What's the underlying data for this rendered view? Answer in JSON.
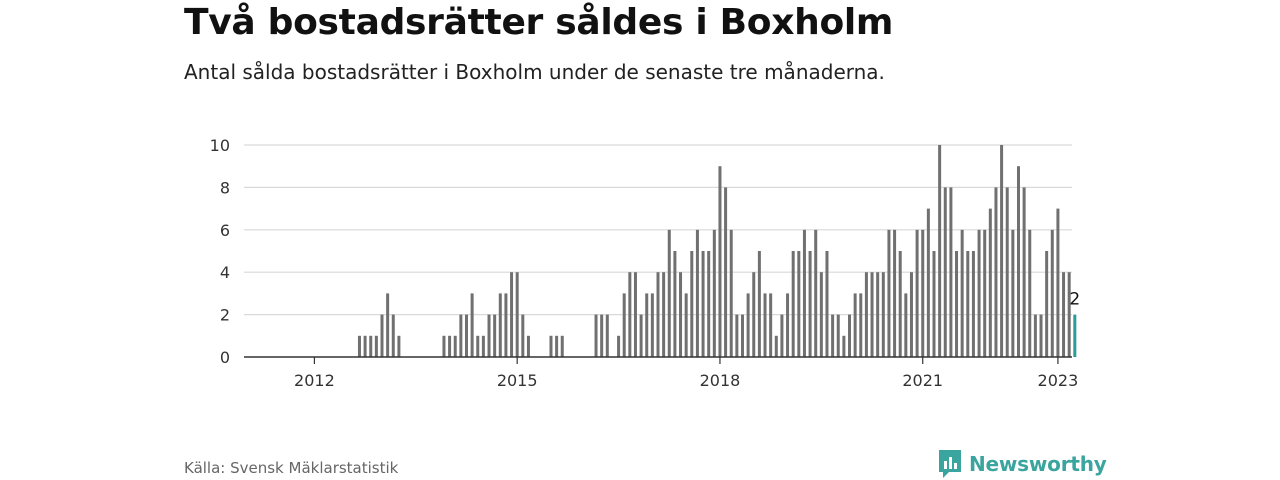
{
  "header": {
    "title": "Två bostadsrätter såldes i Boxholm",
    "subtitle": "Antal sålda bostadsrätter i Boxholm under de senaste tre månaderna."
  },
  "footer": {
    "source": "Källa: Svensk Mäklarstatistik",
    "brand": "Newsworthy"
  },
  "colors": {
    "bar": "#707070",
    "highlight": "#2a9d98",
    "grid": "#d9d9d9",
    "axis": "#333333",
    "brand": "#3aa59f"
  },
  "icons": {
    "brand": "newsworthy-logo-icon"
  },
  "chart_data": {
    "type": "bar",
    "x_start": "2011-01",
    "x_end": "2023-03",
    "ylim": [
      0,
      10
    ],
    "yticks": [
      0,
      2,
      4,
      6,
      8,
      10
    ],
    "xticks": [
      {
        "label": "2012",
        "month": "2012-01"
      },
      {
        "label": "2015",
        "month": "2015-01"
      },
      {
        "label": "2018",
        "month": "2018-01"
      },
      {
        "label": "2021",
        "month": "2021-01"
      },
      {
        "label": "2023",
        "month": "2023-01"
      }
    ],
    "grid": true,
    "legend": "none",
    "highlight_label": "2",
    "points": [
      [
        "2012-09",
        1
      ],
      [
        "2012-10",
        1
      ],
      [
        "2012-11",
        1
      ],
      [
        "2012-12",
        1
      ],
      [
        "2013-01",
        2
      ],
      [
        "2013-02",
        3
      ],
      [
        "2013-03",
        2
      ],
      [
        "2013-04",
        1
      ],
      [
        "2013-12",
        1
      ],
      [
        "2014-01",
        1
      ],
      [
        "2014-02",
        1
      ],
      [
        "2014-03",
        2
      ],
      [
        "2014-04",
        2
      ],
      [
        "2014-05",
        3
      ],
      [
        "2014-06",
        1
      ],
      [
        "2014-07",
        1
      ],
      [
        "2014-08",
        2
      ],
      [
        "2014-09",
        2
      ],
      [
        "2014-10",
        3
      ],
      [
        "2014-11",
        3
      ],
      [
        "2014-12",
        4
      ],
      [
        "2015-01",
        4
      ],
      [
        "2015-02",
        2
      ],
      [
        "2015-03",
        1
      ],
      [
        "2015-07",
        1
      ],
      [
        "2015-08",
        1
      ],
      [
        "2015-09",
        1
      ],
      [
        "2016-03",
        2
      ],
      [
        "2016-04",
        2
      ],
      [
        "2016-05",
        2
      ],
      [
        "2016-07",
        1
      ],
      [
        "2016-08",
        3
      ],
      [
        "2016-09",
        4
      ],
      [
        "2016-10",
        4
      ],
      [
        "2016-11",
        2
      ],
      [
        "2016-12",
        3
      ],
      [
        "2017-01",
        3
      ],
      [
        "2017-02",
        4
      ],
      [
        "2017-03",
        4
      ],
      [
        "2017-04",
        6
      ],
      [
        "2017-05",
        5
      ],
      [
        "2017-06",
        4
      ],
      [
        "2017-07",
        3
      ],
      [
        "2017-08",
        5
      ],
      [
        "2017-09",
        6
      ],
      [
        "2017-10",
        5
      ],
      [
        "2017-11",
        5
      ],
      [
        "2017-12",
        6
      ],
      [
        "2018-01",
        9
      ],
      [
        "2018-02",
        8
      ],
      [
        "2018-03",
        6
      ],
      [
        "2018-04",
        2
      ],
      [
        "2018-05",
        2
      ],
      [
        "2018-06",
        3
      ],
      [
        "2018-07",
        4
      ],
      [
        "2018-08",
        5
      ],
      [
        "2018-09",
        3
      ],
      [
        "2018-10",
        3
      ],
      [
        "2018-11",
        1
      ],
      [
        "2018-12",
        2
      ],
      [
        "2019-01",
        3
      ],
      [
        "2019-02",
        5
      ],
      [
        "2019-03",
        5
      ],
      [
        "2019-04",
        6
      ],
      [
        "2019-05",
        5
      ],
      [
        "2019-06",
        6
      ],
      [
        "2019-07",
        4
      ],
      [
        "2019-08",
        5
      ],
      [
        "2019-09",
        2
      ],
      [
        "2019-10",
        2
      ],
      [
        "2019-11",
        1
      ],
      [
        "2019-12",
        2
      ],
      [
        "2020-01",
        3
      ],
      [
        "2020-02",
        3
      ],
      [
        "2020-03",
        4
      ],
      [
        "2020-04",
        4
      ],
      [
        "2020-05",
        4
      ],
      [
        "2020-06",
        4
      ],
      [
        "2020-07",
        6
      ],
      [
        "2020-08",
        6
      ],
      [
        "2020-09",
        5
      ],
      [
        "2020-10",
        3
      ],
      [
        "2020-11",
        4
      ],
      [
        "2020-12",
        6
      ],
      [
        "2021-01",
        6
      ],
      [
        "2021-02",
        7
      ],
      [
        "2021-03",
        5
      ],
      [
        "2021-04",
        10
      ],
      [
        "2021-05",
        8
      ],
      [
        "2021-06",
        8
      ],
      [
        "2021-07",
        5
      ],
      [
        "2021-08",
        6
      ],
      [
        "2021-09",
        5
      ],
      [
        "2021-10",
        5
      ],
      [
        "2021-11",
        6
      ],
      [
        "2021-12",
        6
      ],
      [
        "2022-01",
        7
      ],
      [
        "2022-02",
        8
      ],
      [
        "2022-03",
        10
      ],
      [
        "2022-04",
        8
      ],
      [
        "2022-05",
        6
      ],
      [
        "2022-06",
        9
      ],
      [
        "2022-07",
        8
      ],
      [
        "2022-08",
        6
      ],
      [
        "2022-09",
        2
      ],
      [
        "2022-10",
        2
      ],
      [
        "2022-11",
        5
      ],
      [
        "2022-12",
        6
      ],
      [
        "2023-01",
        7
      ],
      [
        "2023-02",
        4
      ],
      [
        "2023-03",
        4
      ],
      [
        "2023-04",
        2
      ]
    ]
  }
}
